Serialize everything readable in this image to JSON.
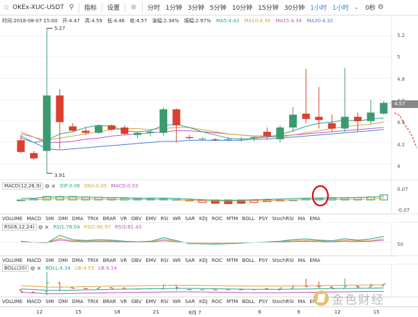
{
  "toolbar": {
    "symbol": "OKEx-XUC-USDT",
    "indicator_label": "指标",
    "settings_label": "设置",
    "intervals": [
      "分时",
      "1分钟",
      "3分钟",
      "5分钟",
      "10分钟",
      "15分钟",
      "30分钟",
      "1小时",
      "1小时"
    ],
    "active_interval_index": 7,
    "time": "0秒"
  },
  "info_bar": {
    "time": "时间:2018-08-07 15:00",
    "open": "开:4.47",
    "high": "高:4.59",
    "low": "低:4.46",
    "close": "收:4.57",
    "change_pct": "涨幅:2.34%",
    "amplitude": "振幅:2.97%",
    "ma5": "MA5:4.43",
    "ma10": "MA10:4.39",
    "ma15": "MA15:4.34",
    "ma30": "MA30:4.32"
  },
  "price_axis": {
    "labels": [
      "5.2",
      "5",
      "4.8",
      "4.6",
      "4.4",
      "4.2",
      "4"
    ],
    "current_price": "4.57",
    "high_mark": "5.27",
    "low_mark": "3.91"
  },
  "macd": {
    "name": "MACD(12,26,9)",
    "dif": "DIF:0.06",
    "dea": "DEA:0.05",
    "macd": "MACD:0.03",
    "axis_labels": [
      "0.07",
      "-0.07"
    ]
  },
  "rsi": {
    "name": "RSI(6,12,24)",
    "rsi1": "RSI1:76.04",
    "rsi2": "RSI2:66.97",
    "rsi3": "RSI3:61.43",
    "axis_labels": [
      "50"
    ]
  },
  "boll": {
    "name": "BOLL(20)",
    "boll": "BOLL:4.34",
    "ub": "UB:4.53",
    "lb": "LB:4.14"
  },
  "indicator_tabs": [
    "VOLUME",
    "MACD",
    "SMI",
    "DMI",
    "DMA",
    "TRIX",
    "BRAR",
    "VR",
    "OBV",
    "EMV",
    "RSI",
    "WR",
    "SAR",
    "KDJ",
    "ROC",
    "MTM",
    "BOLL",
    "PSY",
    "StochRSI",
    "MA",
    "EMA"
  ],
  "time_axis": [
    "12",
    "15",
    "18",
    "21",
    "8月 7",
    "6",
    "9",
    "12",
    "15"
  ],
  "watermark_text": "金色财经",
  "colors": {
    "up": "#3d9970",
    "down": "#d9412e",
    "ma5": "#28a28a",
    "ma10": "#d8a23c",
    "ma15": "#c150c0",
    "ma30": "#3f7fd5",
    "accent": "#2d7fd8",
    "annotation": "#e0001b"
  },
  "icons": [
    "star-icon",
    "search-icon",
    "sun-icon",
    "chevron-down-icon",
    "gear-icon",
    "close-icon",
    "circle-annotation"
  ],
  "chart_data": {
    "type": "candlestick",
    "price_range": [
      3.85,
      5.3
    ],
    "candles": [
      {
        "o": 4.22,
        "h": 4.27,
        "l": 4.1,
        "c": 4.11
      },
      {
        "o": 4.1,
        "h": 4.12,
        "l": 4.04,
        "c": 4.05
      },
      {
        "o": 4.12,
        "h": 5.27,
        "l": 3.91,
        "c": 4.64
      },
      {
        "o": 4.64,
        "h": 4.7,
        "l": 4.14,
        "c": 4.39
      },
      {
        "o": 4.35,
        "h": 4.38,
        "l": 4.3,
        "c": 4.31
      },
      {
        "o": 4.31,
        "h": 4.34,
        "l": 4.27,
        "c": 4.29
      },
      {
        "o": 4.29,
        "h": 4.37,
        "l": 4.28,
        "c": 4.36
      },
      {
        "o": 4.36,
        "h": 4.37,
        "l": 4.31,
        "c": 4.32
      },
      {
        "o": 4.34,
        "h": 4.36,
        "l": 4.27,
        "c": 4.28
      },
      {
        "o": 4.27,
        "h": 4.3,
        "l": 4.24,
        "c": 4.29
      },
      {
        "o": 4.29,
        "h": 4.32,
        "l": 4.26,
        "c": 4.3
      },
      {
        "o": 4.29,
        "h": 4.53,
        "l": 4.26,
        "c": 4.51
      },
      {
        "o": 4.51,
        "h": 4.52,
        "l": 4.2,
        "c": 4.36
      },
      {
        "o": 4.25,
        "h": 4.27,
        "l": 4.23,
        "c": 4.24
      },
      {
        "o": 4.23,
        "h": 4.25,
        "l": 4.22,
        "c": 4.235
      },
      {
        "o": 4.23,
        "h": 4.24,
        "l": 4.21,
        "c": 4.225
      },
      {
        "o": 4.23,
        "h": 4.25,
        "l": 4.21,
        "c": 4.23
      },
      {
        "o": 4.23,
        "h": 4.25,
        "l": 4.21,
        "c": 4.235
      },
      {
        "o": 4.24,
        "h": 4.26,
        "l": 4.21,
        "c": 4.25
      },
      {
        "o": 4.3,
        "h": 4.34,
        "l": 4.23,
        "c": 4.26
      },
      {
        "o": 4.23,
        "h": 4.36,
        "l": 4.2,
        "c": 4.34
      },
      {
        "o": 4.34,
        "h": 4.53,
        "l": 4.3,
        "c": 4.46
      },
      {
        "o": 4.47,
        "h": 4.89,
        "l": 4.38,
        "c": 4.42
      },
      {
        "o": 4.44,
        "h": 4.72,
        "l": 4.33,
        "c": 4.41
      },
      {
        "o": 4.38,
        "h": 4.46,
        "l": 4.3,
        "c": 4.33
      },
      {
        "o": 4.33,
        "h": 4.9,
        "l": 4.3,
        "c": 4.44
      },
      {
        "o": 4.44,
        "h": 4.48,
        "l": 4.3,
        "c": 4.4
      },
      {
        "o": 4.4,
        "h": 4.6,
        "l": 4.37,
        "c": 4.48
      },
      {
        "o": 4.47,
        "h": 4.59,
        "l": 4.46,
        "c": 4.57
      }
    ],
    "ma5": [
      4.26,
      4.2,
      4.22,
      4.28,
      4.3,
      4.34,
      4.36,
      4.35,
      4.31,
      4.3,
      4.31,
      4.36,
      4.37,
      4.34,
      4.3,
      4.27,
      4.24,
      4.23,
      4.24,
      4.25,
      4.27,
      4.31,
      4.35,
      4.38,
      4.39,
      4.41,
      4.4,
      4.42,
      4.43
    ],
    "ma10": [
      4.3,
      4.25,
      4.22,
      4.24,
      4.26,
      4.28,
      4.3,
      4.32,
      4.33,
      4.33,
      4.32,
      4.33,
      4.34,
      4.34,
      4.32,
      4.3,
      4.28,
      4.27,
      4.26,
      4.25,
      4.25,
      4.27,
      4.29,
      4.31,
      4.33,
      4.35,
      4.36,
      4.37,
      4.39
    ],
    "ma15": [
      4.28,
      4.25,
      4.2,
      4.2,
      4.21,
      4.23,
      4.24,
      4.26,
      4.27,
      4.28,
      4.29,
      4.3,
      4.31,
      4.31,
      4.3,
      4.29,
      4.28,
      4.27,
      4.26,
      4.26,
      4.26,
      4.27,
      4.28,
      4.29,
      4.3,
      4.31,
      4.32,
      4.33,
      4.34
    ],
    "ma30": [
      4.24,
      4.2,
      4.14,
      4.13,
      4.14,
      4.15,
      4.16,
      4.17,
      4.18,
      4.19,
      4.2,
      4.21,
      4.21,
      4.22,
      4.22,
      4.22,
      4.22,
      4.22,
      4.23,
      4.23,
      4.24,
      4.25,
      4.26,
      4.27,
      4.28,
      4.29,
      4.3,
      4.31,
      4.32
    ],
    "macd_hist": [
      0.0,
      0.005,
      0.02,
      0.02,
      0.02,
      0.018,
      0.016,
      0.013,
      0.01,
      0.007,
      0.006,
      0.006,
      0.003,
      -0.005,
      -0.015,
      -0.02,
      -0.022,
      -0.02,
      -0.015,
      -0.01,
      -0.005,
      0.0,
      0.005,
      0.008,
      0.01,
      0.012,
      0.015,
      0.018,
      0.03
    ],
    "macd_range": [
      -0.07,
      0.07
    ],
    "rsi_range": [
      0,
      100
    ]
  }
}
